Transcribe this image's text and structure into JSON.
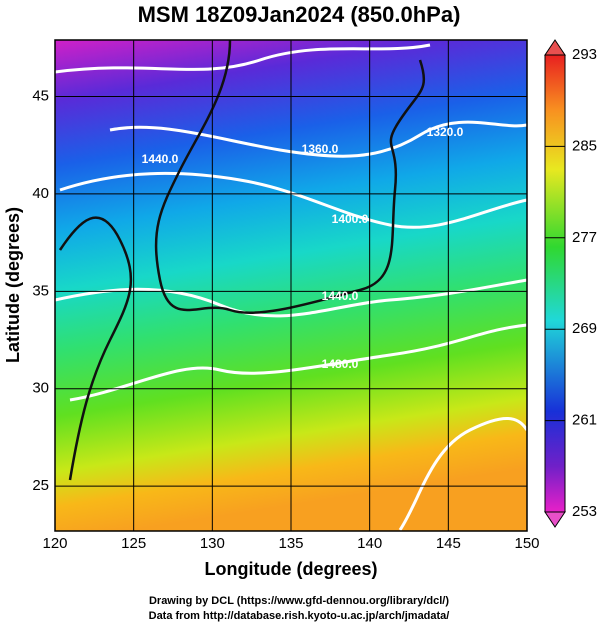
{
  "title": "MSM 18Z09Jan2024 (850.0hPa)",
  "map": {
    "x_label": "Longitude (degrees)",
    "y_label": "Latitude  (degrees)",
    "xlim": [
      120,
      150
    ],
    "ylim": [
      22.7,
      47.9
    ],
    "xticks": [
      120,
      125,
      130,
      135,
      140,
      145,
      150
    ],
    "yticks": [
      25,
      30,
      35,
      40,
      45
    ],
    "contour_labels": [
      "1440.0",
      "1360.0",
      "1320.0",
      "1400.0",
      "1440.0",
      "1480.0"
    ]
  },
  "colorbar": {
    "lim": [
      253,
      293
    ],
    "ticks": [
      253,
      261,
      269,
      277,
      285,
      293
    ]
  },
  "credits": [
    "Drawing by DCL (https://www.gfd-dennou.org/library/dcl/)",
    "Data from http://database.rish.kyoto-u.ac.jp/arch/jmadata/"
  ]
}
